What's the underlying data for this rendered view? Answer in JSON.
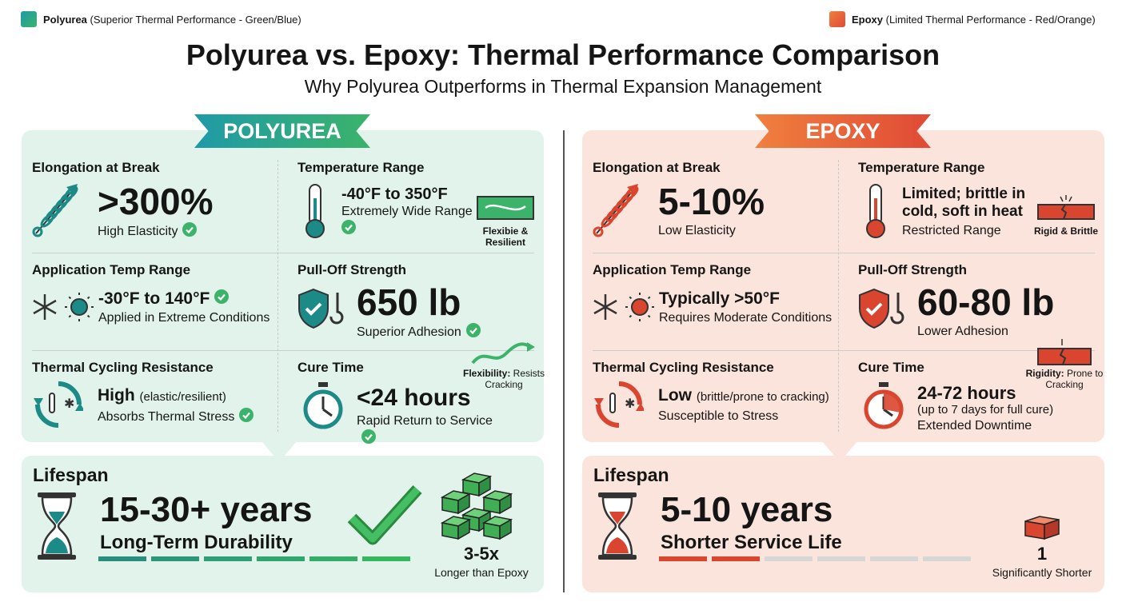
{
  "legend": [
    {
      "label": "Polyurea",
      "desc": "(Superior Thermal Performance - Green/Blue)"
    },
    {
      "label": "Epoxy",
      "desc": "(Limited Thermal Performance - Red/Orange)"
    }
  ],
  "header": {
    "title": "Polyurea vs. Epoxy: Thermal Performance Comparison",
    "subtitle": "Why Polyurea Outperforms in Thermal Expansion Management"
  },
  "panels": [
    {
      "banner": "POLYUREA",
      "cells": [
        {
          "heading": "Elongation at Break",
          "value": ">300%",
          "note": "High Elasticity"
        },
        {
          "heading": "Temperature Range",
          "value": "-40°F to 350°F",
          "note": "Extremely Wide Range"
        },
        {
          "heading": "Application Temp Range",
          "value": "-30°F to 140°F",
          "note": "Applied in Extreme Conditions"
        },
        {
          "heading": "Pull-Off Strength",
          "value": "650 lb",
          "note": "Superior Adhesion"
        },
        {
          "heading": "Thermal Cycling Resistance",
          "value": "High",
          "detail": "(elastic/resilient)",
          "note": "Absorbs Thermal Stress"
        },
        {
          "heading": "Cure Time",
          "value": "<24 hours",
          "note": "Rapid Return to Service"
        }
      ],
      "side_notes": [
        {
          "label": "Flexibie & Resilient"
        },
        {
          "label": "Flexibility:",
          "text": "Resists Cracking"
        }
      ],
      "lifespan": {
        "heading": "Lifespan",
        "value": "15-30+ years",
        "subtitle": "Long-Term Durability",
        "multiplier": "3-5x",
        "multiplier_note": "Longer than Epoxy"
      }
    },
    {
      "banner": "EPOXY",
      "cells": [
        {
          "heading": "Elongation at Break",
          "value": "5-10%",
          "note": "Low Elasticity"
        },
        {
          "heading": "Temperature Range",
          "value": "Limited; brittle in cold, soft in heat",
          "note": "Restricted Range"
        },
        {
          "heading": "Application Temp Range",
          "value": "Typically >50°F",
          "note": "Requires Moderate Conditions"
        },
        {
          "heading": "Pull-Off Strength",
          "value": "60-80 lb",
          "note": "Lower Adhesion"
        },
        {
          "heading": "Thermal Cycling Resistance",
          "value": "Low",
          "detail": "(brittle/prone to cracking)",
          "note": "Susceptible to Stress"
        },
        {
          "heading": "Cure Time",
          "value": "24-72 hours",
          "detail": "(up to 7 days for full cure)",
          "note": "Extended Downtime"
        }
      ],
      "side_notes": [
        {
          "label": "Rigid & Brittle"
        },
        {
          "label": "Rigidity:",
          "text": "Prone to Cracking"
        }
      ],
      "lifespan": {
        "heading": "Lifespan",
        "value": "5-10 years",
        "subtitle": "Shorter Service Life",
        "multiplier": "1",
        "multiplier_note": "Significantly Shorter"
      }
    }
  ]
}
